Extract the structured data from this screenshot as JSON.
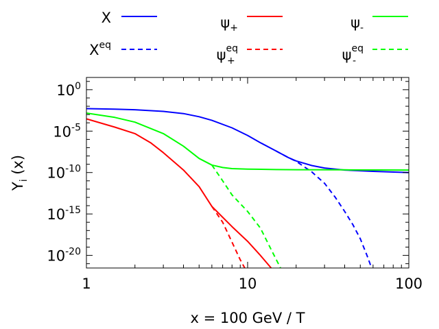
{
  "chart_data": {
    "type": "line",
    "xlabel": "x = 100 GeV / T",
    "ylabel": {
      "main": "Y",
      "sub": "i",
      "tail": " (x)"
    },
    "x_scale": "log",
    "y_scale": "log",
    "xlim": [
      1,
      100
    ],
    "ylim": [
      3e-22,
      30
    ],
    "grid": false,
    "legend_position": "top",
    "x_ticks": [
      {
        "value": 1,
        "label": "1"
      },
      {
        "value": 10,
        "label": "10"
      },
      {
        "value": 100,
        "label": "100"
      }
    ],
    "y_ticks": [
      {
        "value": 1,
        "base": "10",
        "exp": "0"
      },
      {
        "value": 1e-05,
        "base": "10",
        "exp": "-5"
      },
      {
        "value": 1e-10,
        "base": "10",
        "exp": "-10"
      },
      {
        "value": 1e-15,
        "base": "10",
        "exp": "-15"
      },
      {
        "value": 1e-20,
        "base": "10",
        "exp": "-20"
      }
    ],
    "series": [
      {
        "key": "X",
        "label_main": "X",
        "label_sub": "",
        "label_sup": "",
        "color": "#0000ff",
        "dashed": false,
        "points": [
          [
            1,
            0.0052
          ],
          [
            1.5,
            0.0045
          ],
          [
            2,
            0.0038
          ],
          [
            3,
            0.0024
          ],
          [
            4,
            0.0013
          ],
          [
            5,
            0.00055
          ],
          [
            6,
            0.0002
          ],
          [
            8,
            2.5e-05
          ],
          [
            10,
            3e-06
          ],
          [
            12,
            4e-07
          ],
          [
            15,
            4e-08
          ],
          [
            18,
            6e-09
          ],
          [
            20,
            2.5e-09
          ],
          [
            25,
            7e-10
          ],
          [
            30,
            3.5e-10
          ],
          [
            40,
            2e-10
          ],
          [
            60,
            1.4e-10
          ],
          [
            100,
            1e-10
          ]
        ]
      },
      {
        "key": "X_eq",
        "label_main": "X",
        "label_sub": "",
        "label_sup": "eq",
        "color": "#0000ff",
        "dashed": true,
        "points": [
          [
            15,
            4e-08
          ],
          [
            18,
            6e-09
          ],
          [
            20,
            2.3e-09
          ],
          [
            25,
            1.2e-10
          ],
          [
            30,
            5e-12
          ],
          [
            35,
            1e-13
          ],
          [
            40,
            2e-15
          ],
          [
            45,
            5e-17
          ],
          [
            50,
            1e-18
          ],
          [
            55,
            1e-20
          ],
          [
            58,
            6e-22
          ]
        ]
      },
      {
        "key": "psi_plus",
        "label_main": "ψ",
        "label_sub": "+",
        "label_sup": "",
        "color": "#ff0000",
        "dashed": false,
        "points": [
          [
            1,
            0.0003
          ],
          [
            1.5,
            3e-05
          ],
          [
            2,
            5e-06
          ],
          [
            2.5,
            4e-07
          ],
          [
            3,
            2.5e-08
          ],
          [
            4,
            2e-10
          ],
          [
            5,
            2e-12
          ],
          [
            6,
            8e-15
          ],
          [
            7,
            4e-16
          ],
          [
            8,
            3e-17
          ],
          [
            10,
            5e-19
          ],
          [
            12,
            1e-20
          ],
          [
            14,
            3e-22
          ]
        ]
      },
      {
        "key": "psi_plus_eq",
        "label_main": "ψ",
        "label_sub": "+",
        "label_sup": "eq",
        "color": "#ff0000",
        "dashed": true,
        "points": [
          [
            6,
            8e-15
          ],
          [
            7,
            1e-16
          ],
          [
            8,
            4e-19
          ],
          [
            9,
            3e-21
          ],
          [
            9.6,
            3e-22
          ]
        ]
      },
      {
        "key": "psi_minus",
        "label_main": "ψ",
        "label_sub": "-",
        "label_sup": "",
        "color": "#00ff00",
        "dashed": false,
        "points": [
          [
            1,
            0.0015
          ],
          [
            1.5,
            0.00045
          ],
          [
            2,
            0.00012
          ],
          [
            3,
            5e-06
          ],
          [
            4,
            1.5e-07
          ],
          [
            5,
            5e-09
          ],
          [
            6,
            8e-10
          ],
          [
            7,
            4e-10
          ],
          [
            8,
            3e-10
          ],
          [
            10,
            2.6e-10
          ],
          [
            15,
            2.3e-10
          ],
          [
            20,
            2.2e-10
          ],
          [
            40,
            2.1e-10
          ],
          [
            100,
            2e-10
          ]
        ]
      },
      {
        "key": "psi_minus_eq",
        "label_main": "ψ",
        "label_sub": "-",
        "label_sup": "eq",
        "color": "#00ff00",
        "dashed": true,
        "points": [
          [
            6,
            8e-10
          ],
          [
            7,
            1e-11
          ],
          [
            8,
            2e-13
          ],
          [
            10,
            2e-15
          ],
          [
            12,
            2e-17
          ],
          [
            14,
            5e-20
          ],
          [
            16,
            3e-22
          ]
        ]
      }
    ]
  }
}
